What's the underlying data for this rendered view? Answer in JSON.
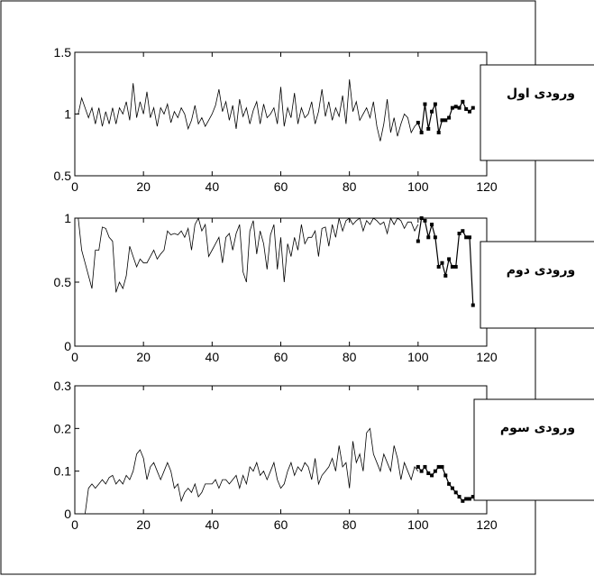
{
  "chart_data": [
    {
      "type": "line",
      "label": "ورودی اول",
      "xlim": [
        0,
        120
      ],
      "ylim": [
        0.5,
        1.5
      ],
      "xticks": [
        "0",
        "20",
        "40",
        "60",
        "80",
        "100",
        "120"
      ],
      "yticks": [
        "0.5",
        "1",
        "1.5"
      ],
      "series": [
        {
          "x": [
            0,
            1,
            2,
            3,
            4,
            5,
            6,
            7,
            8,
            9,
            10,
            11,
            12,
            13,
            14,
            15,
            16,
            17,
            18,
            19,
            20,
            21,
            22,
            23,
            24,
            25,
            26,
            27,
            28,
            29,
            30,
            31,
            32,
            33,
            34,
            35,
            36,
            37,
            38,
            39,
            40,
            41,
            42,
            43,
            44,
            45,
            46,
            47,
            48,
            49,
            50,
            51,
            52,
            53,
            54,
            55,
            56,
            57,
            58,
            59,
            60,
            61,
            62,
            63,
            64,
            65,
            66,
            67,
            68,
            69,
            70,
            71,
            72,
            73,
            74,
            75,
            76,
            77,
            78,
            79,
            80,
            81,
            82,
            83,
            84,
            85,
            86,
            87,
            88,
            89,
            90,
            91,
            92,
            93,
            94,
            95,
            96,
            97,
            98,
            99,
            100
          ],
          "y": [
            1.0,
            1.0,
            1.13,
            1.05,
            0.97,
            1.05,
            0.92,
            1.05,
            0.9,
            1.02,
            0.92,
            1.05,
            0.92,
            1.05,
            1.0,
            1.1,
            0.95,
            1.25,
            0.97,
            1.1,
            1.0,
            1.18,
            0.97,
            1.05,
            0.9,
            1.05,
            1.0,
            1.08,
            0.93,
            1.02,
            0.97,
            1.05,
            1.0,
            0.88,
            0.95,
            1.07,
            0.92,
            0.97,
            0.9,
            0.95,
            1.0,
            1.07,
            1.2,
            1.02,
            1.1,
            0.95,
            1.07,
            0.88,
            1.12,
            0.98,
            1.05,
            0.92,
            1.03,
            1.1,
            0.92,
            1.08,
            0.97,
            1.0,
            1.05,
            0.92,
            1.22,
            0.9,
            1.05,
            0.97,
            1.17,
            0.92,
            1.05,
            0.97,
            1.0,
            1.1,
            0.92,
            1.02,
            1.2,
            0.98,
            1.1,
            0.95,
            1.05,
            0.98,
            1.15,
            0.92,
            1.28,
            1.02,
            1.1,
            0.95,
            1.0,
            1.05,
            0.97,
            1.1,
            0.9,
            0.78,
            0.92,
            1.12,
            0.85,
            0.97,
            0.82,
            0.92,
            1.0,
            0.97,
            0.85,
            0.9,
            0.93
          ]
        },
        {
          "x": [
            100,
            101,
            102,
            103,
            104,
            105,
            106,
            107,
            108,
            109,
            110,
            111,
            112,
            113,
            114,
            115,
            116
          ],
          "y": [
            0.93,
            0.85,
            1.08,
            0.88,
            1.02,
            1.08,
            0.85,
            0.95,
            0.95,
            0.97,
            1.05,
            1.06,
            1.05,
            1.1,
            1.04,
            1.02,
            1.05
          ]
        }
      ]
    },
    {
      "type": "line",
      "label": "ورودی دوم",
      "xlim": [
        0,
        120
      ],
      "ylim": [
        0,
        1
      ],
      "xticks": [
        "0",
        "20",
        "40",
        "60",
        "80",
        "100",
        "120"
      ],
      "yticks": [
        "0",
        "0.5",
        "1"
      ],
      "series": [
        {
          "x": [
            0,
            1,
            2,
            3,
            4,
            5,
            6,
            7,
            8,
            9,
            10,
            11,
            12,
            13,
            14,
            15,
            16,
            17,
            18,
            19,
            20,
            21,
            22,
            23,
            24,
            25,
            26,
            27,
            28,
            29,
            30,
            31,
            32,
            33,
            34,
            35,
            36,
            37,
            38,
            39,
            40,
            41,
            42,
            43,
            44,
            45,
            46,
            47,
            48,
            49,
            50,
            51,
            52,
            53,
            54,
            55,
            56,
            57,
            58,
            59,
            60,
            61,
            62,
            63,
            64,
            65,
            66,
            67,
            68,
            69,
            70,
            71,
            72,
            73,
            74,
            75,
            76,
            77,
            78,
            79,
            80,
            81,
            82,
            83,
            84,
            85,
            86,
            87,
            88,
            89,
            90,
            91,
            92,
            93,
            94,
            95,
            96,
            97,
            98,
            99,
            100
          ],
          "y": [
            1.0,
            1.0,
            0.75,
            0.65,
            0.55,
            0.45,
            0.75,
            0.75,
            0.93,
            0.92,
            0.85,
            0.82,
            0.42,
            0.5,
            0.45,
            0.55,
            0.78,
            0.7,
            0.62,
            0.68,
            0.65,
            0.65,
            0.7,
            0.75,
            0.68,
            0.72,
            0.75,
            0.9,
            0.87,
            0.88,
            0.87,
            0.9,
            0.85,
            0.92,
            0.75,
            0.95,
            1.0,
            0.9,
            0.95,
            0.7,
            0.75,
            0.8,
            0.85,
            0.65,
            0.85,
            0.88,
            0.75,
            0.88,
            0.95,
            0.58,
            0.5,
            0.9,
            0.98,
            0.72,
            0.9,
            0.8,
            0.6,
            0.87,
            0.95,
            0.6,
            0.85,
            0.5,
            0.8,
            0.7,
            0.85,
            0.75,
            0.95,
            0.8,
            0.85,
            0.85,
            0.9,
            0.7,
            0.92,
            0.93,
            0.78,
            0.95,
            0.85,
            1.0,
            0.9,
            0.98,
            1.0,
            0.95,
            0.98,
            1.0,
            0.9,
            0.98,
            0.95,
            1.0,
            0.98,
            0.95,
            0.97,
            0.88,
            1.0,
            0.95,
            1.0,
            0.98,
            0.92,
            0.97,
            0.97,
            0.9,
            0.95
          ]
        },
        {
          "x": [
            100,
            101,
            102,
            103,
            104,
            105,
            106,
            107,
            108,
            109,
            110,
            111,
            112,
            113,
            114,
            115,
            116
          ],
          "y": [
            0.82,
            1.0,
            0.98,
            0.85,
            0.95,
            0.85,
            0.62,
            0.65,
            0.55,
            0.68,
            0.62,
            0.62,
            0.88,
            0.9,
            0.85,
            0.85,
            0.32
          ]
        }
      ]
    },
    {
      "type": "line",
      "label": "ورودی سوم",
      "xlim": [
        0,
        120
      ],
      "ylim": [
        0,
        0.3
      ],
      "xticks": [
        "0",
        "20",
        "40",
        "60",
        "80",
        "100",
        "120"
      ],
      "yticks": [
        "0",
        "0.1",
        "0.2",
        "0.3"
      ],
      "series": [
        {
          "x": [
            3,
            4,
            5,
            6,
            7,
            8,
            9,
            10,
            11,
            12,
            13,
            14,
            15,
            16,
            17,
            18,
            19,
            20,
            21,
            22,
            23,
            24,
            25,
            26,
            27,
            28,
            29,
            30,
            31,
            32,
            33,
            34,
            35,
            36,
            37,
            38,
            39,
            40,
            41,
            42,
            43,
            44,
            45,
            46,
            47,
            48,
            49,
            50,
            51,
            52,
            53,
            54,
            55,
            56,
            57,
            58,
            59,
            60,
            61,
            62,
            63,
            64,
            65,
            66,
            67,
            68,
            69,
            70,
            71,
            72,
            73,
            74,
            75,
            76,
            77,
            78,
            79,
            80,
            81,
            82,
            83,
            84,
            85,
            86,
            87,
            88,
            89,
            90,
            91,
            92,
            93,
            94,
            95,
            96,
            97,
            98,
            99,
            100
          ],
          "y": [
            0.0,
            0.06,
            0.07,
            0.06,
            0.07,
            0.08,
            0.07,
            0.085,
            0.09,
            0.07,
            0.08,
            0.07,
            0.09,
            0.08,
            0.1,
            0.14,
            0.15,
            0.13,
            0.08,
            0.11,
            0.12,
            0.1,
            0.08,
            0.1,
            0.12,
            0.1,
            0.06,
            0.07,
            0.03,
            0.05,
            0.06,
            0.05,
            0.07,
            0.04,
            0.05,
            0.07,
            0.07,
            0.07,
            0.08,
            0.06,
            0.08,
            0.08,
            0.07,
            0.08,
            0.09,
            0.06,
            0.09,
            0.07,
            0.11,
            0.1,
            0.12,
            0.09,
            0.1,
            0.08,
            0.1,
            0.12,
            0.08,
            0.06,
            0.07,
            0.1,
            0.12,
            0.09,
            0.11,
            0.1,
            0.12,
            0.11,
            0.08,
            0.13,
            0.07,
            0.09,
            0.1,
            0.11,
            0.13,
            0.1,
            0.16,
            0.11,
            0.12,
            0.06,
            0.17,
            0.12,
            0.14,
            0.1,
            0.19,
            0.2,
            0.14,
            0.12,
            0.1,
            0.14,
            0.12,
            0.1,
            0.16,
            0.13,
            0.08,
            0.12,
            0.1,
            0.08,
            0.11,
            0.1
          ]
        },
        {
          "x": [
            100,
            101,
            102,
            103,
            104,
            105,
            106,
            107,
            108,
            109,
            110,
            111,
            112,
            113,
            114,
            115,
            116
          ],
          "y": [
            0.11,
            0.1,
            0.11,
            0.095,
            0.09,
            0.1,
            0.11,
            0.11,
            0.09,
            0.07,
            0.06,
            0.05,
            0.04,
            0.03,
            0.035,
            0.035,
            0.04
          ]
        }
      ]
    }
  ]
}
